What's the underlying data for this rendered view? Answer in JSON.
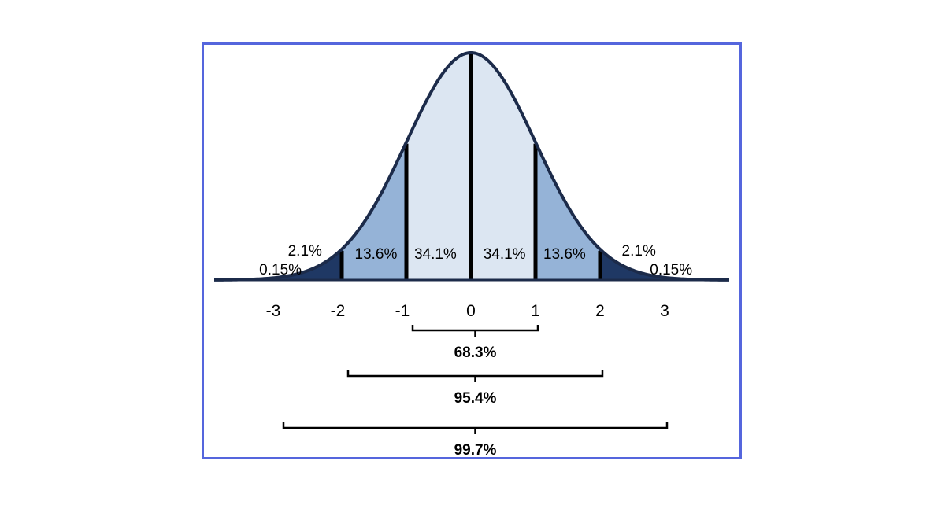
{
  "chart_data": {
    "type": "area",
    "title": "",
    "xlabel": "",
    "ylabel": "",
    "xlim": [
      -3.3,
      4.0
    ],
    "x_ticks": [
      "-3",
      "-2",
      "-1",
      "0",
      "1",
      "2",
      "3"
    ],
    "x_tick_values": [
      -3,
      -2,
      -1,
      0,
      1,
      2,
      3
    ],
    "curve": "standard normal density",
    "region_percentages": [
      {
        "from": -4,
        "to": -3,
        "label": "0.15%"
      },
      {
        "from": -3,
        "to": -2,
        "label": "2.1%"
      },
      {
        "from": -2,
        "to": -1,
        "label": "13.6%"
      },
      {
        "from": -1,
        "to": 0,
        "label": "34.1%"
      },
      {
        "from": 0,
        "to": 1,
        "label": "34.1%"
      },
      {
        "from": 1,
        "to": 2,
        "label": "13.6%"
      },
      {
        "from": 2,
        "to": 3,
        "label": "2.1%"
      },
      {
        "from": 3,
        "to": 4,
        "label": "0.15%"
      }
    ],
    "brackets": [
      {
        "from": -1,
        "to": 1,
        "label": "68.3%"
      },
      {
        "from": -2,
        "to": 2,
        "label": "95.4%"
      },
      {
        "from": -3,
        "to": 3,
        "label": "99.7%"
      }
    ],
    "colors": {
      "center": "#dce6f2",
      "middle": "#95b3d7",
      "tail": "#1f3864",
      "outline": "#1c2b4a",
      "frame": "#5566dd"
    }
  }
}
